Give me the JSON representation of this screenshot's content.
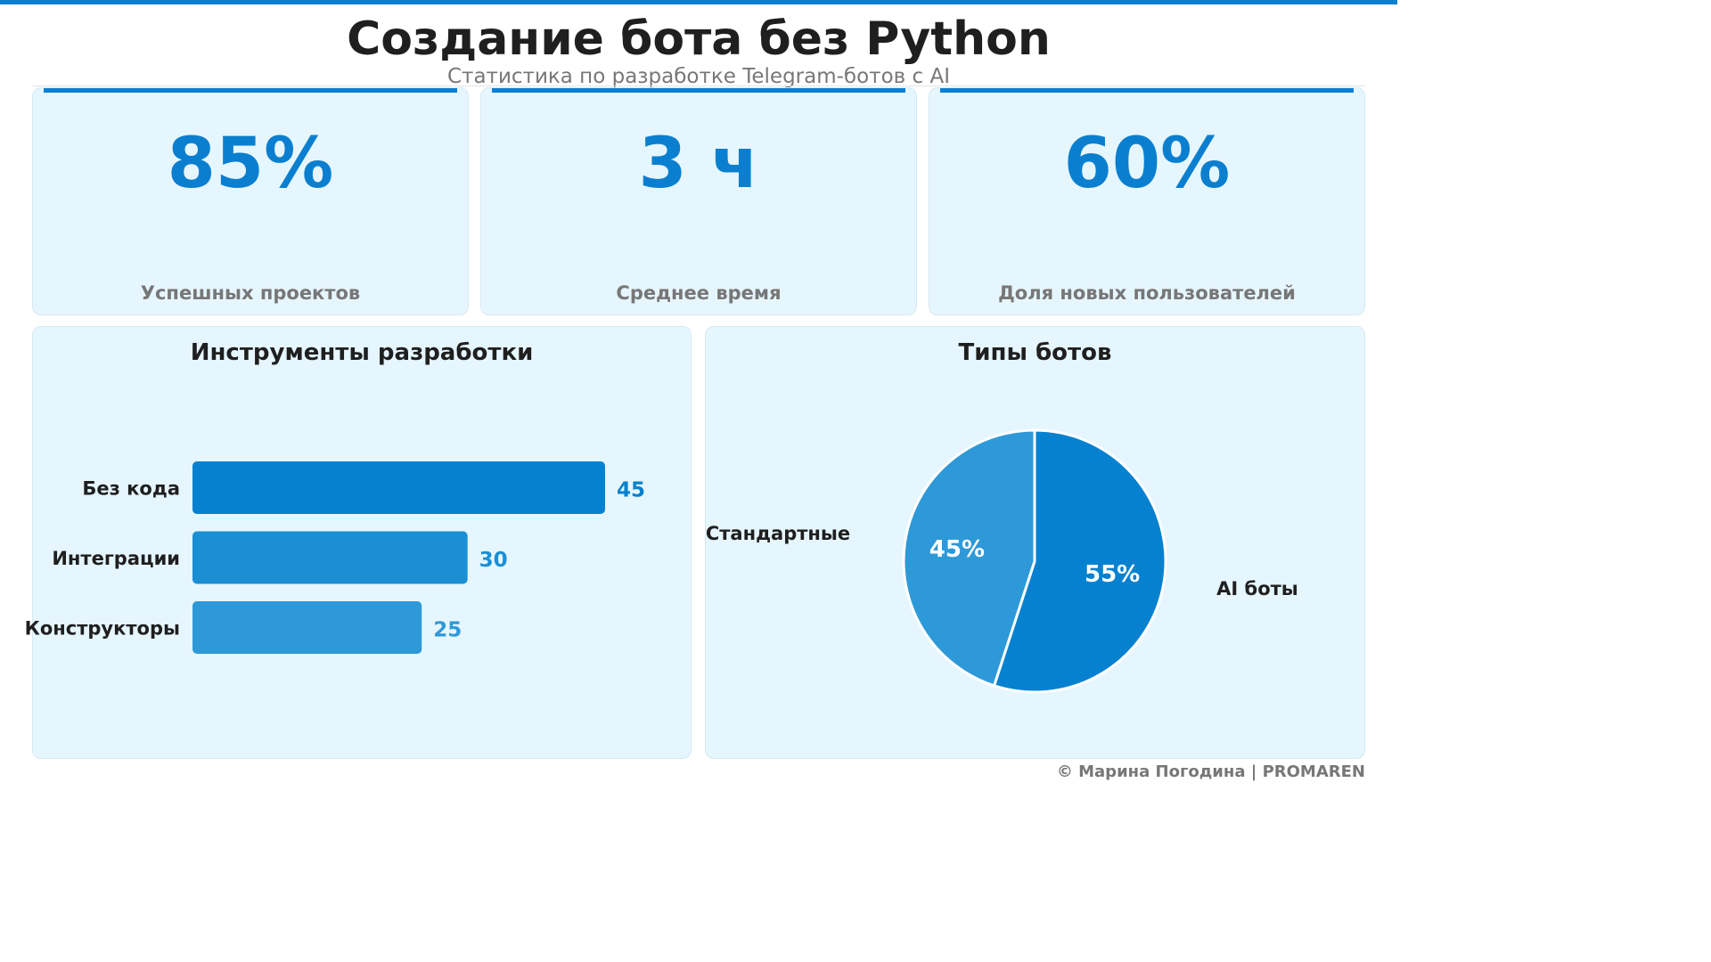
{
  "header": {
    "title": "Создание бота без Python",
    "subtitle": "Статистика по разработке Telegram-ботов с AI"
  },
  "kpis": [
    {
      "value": "85%",
      "label": "Успешных проектов"
    },
    {
      "value": "3 ч",
      "label": "Среднее время"
    },
    {
      "value": "60%",
      "label": "Доля новых пользователей"
    }
  ],
  "colors": {
    "accent": "#0a7fcf",
    "bar1": "#0681d0",
    "bar2": "#1a8fd4",
    "bar3": "#2e99d9",
    "panel": "#e6f6fe"
  },
  "chart_data": [
    {
      "type": "bar",
      "orientation": "horizontal",
      "title": "Инструменты разработки",
      "categories": [
        "Без кода",
        "Интеграции",
        "Конструкторы"
      ],
      "values": [
        45,
        30,
        25
      ],
      "value_labels": [
        "45",
        "30",
        "25"
      ],
      "grid": false
    },
    {
      "type": "pie",
      "title": "Типы ботов",
      "categories": [
        "AI боты",
        "Стандартные"
      ],
      "values": [
        55,
        45
      ],
      "value_labels": [
        "55%",
        "45%"
      ],
      "colors": [
        "#0681d0",
        "#2e99d9"
      ]
    }
  ],
  "footer": "© Марина Погодина | PROMAREN"
}
